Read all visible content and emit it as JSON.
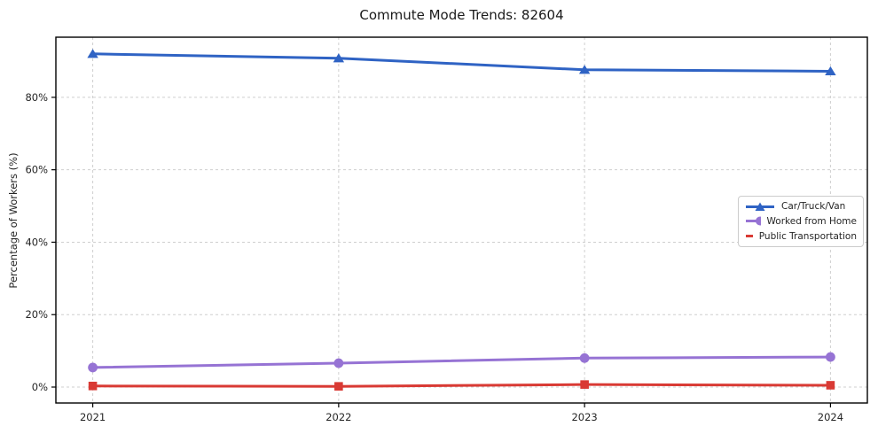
{
  "header": {
    "title": "Commute Mode Trends: 82604"
  },
  "chart_data": {
    "type": "line",
    "title": "Commute Mode Trends: 82604",
    "xlabel": "",
    "ylabel": "Percentage of Workers (%)",
    "categories": [
      "2021",
      "2022",
      "2023",
      "2024"
    ],
    "x": [
      2021,
      2022,
      2023,
      2024
    ],
    "series": [
      {
        "name": "Car/Truck/Van",
        "marker": "triangle",
        "color": "#2f63c4",
        "values": [
          92.0,
          90.8,
          87.6,
          87.2
        ]
      },
      {
        "name": "Worked from Home",
        "marker": "circle",
        "color": "#9673d4",
        "values": [
          5.4,
          6.6,
          8.0,
          8.3
        ]
      },
      {
        "name": "Public Transportation",
        "marker": "square",
        "color": "#d93a34",
        "values": [
          0.3,
          0.2,
          0.7,
          0.5
        ]
      }
    ],
    "xlim": [
      2020.85,
      2024.15
    ],
    "ylim": [
      -4.4,
      96.6
    ],
    "y_ticks": [
      0,
      20,
      40,
      60,
      80
    ],
    "y_tick_labels": [
      "0%",
      "20%",
      "40%",
      "60%",
      "80%"
    ],
    "grid": true,
    "grid_style": "dashed",
    "legend_position": "center-right",
    "colors": {
      "grid": "#cfcfcf",
      "axis": "#000000",
      "background": "#ffffff",
      "text": "#262626"
    }
  }
}
